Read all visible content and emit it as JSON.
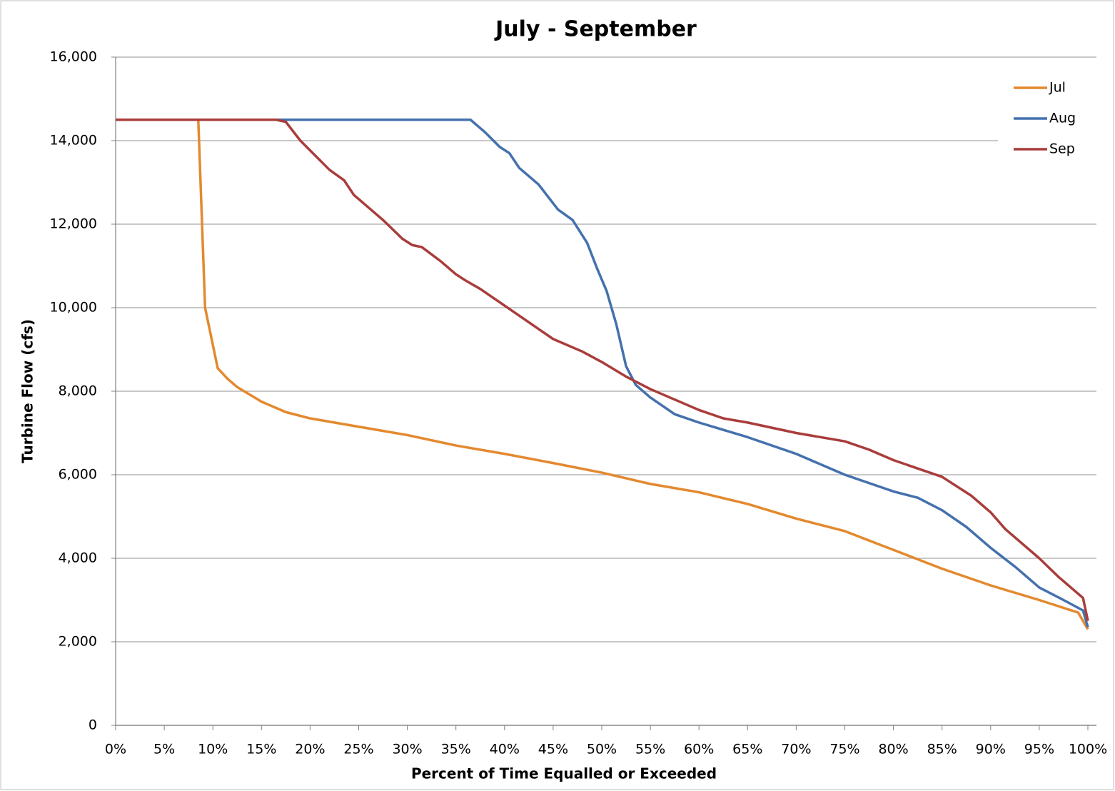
{
  "chart_data": {
    "type": "line",
    "title": "July - September",
    "xlabel": "Percent of Time Equalled or Exceeded",
    "ylabel": "Turbine Flow (cfs)",
    "xlim": [
      0,
      100
    ],
    "ylim": [
      0,
      16000
    ],
    "xticks": [
      {
        "value": 0,
        "label": "0%"
      },
      {
        "value": 5,
        "label": "5%"
      },
      {
        "value": 10,
        "label": "10%"
      },
      {
        "value": 15,
        "label": "15%"
      },
      {
        "value": 20,
        "label": "20%"
      },
      {
        "value": 25,
        "label": "25%"
      },
      {
        "value": 30,
        "label": "30%"
      },
      {
        "value": 35,
        "label": "35%"
      },
      {
        "value": 40,
        "label": "40%"
      },
      {
        "value": 45,
        "label": "45%"
      },
      {
        "value": 50,
        "label": "50%"
      },
      {
        "value": 55,
        "label": "55%"
      },
      {
        "value": 60,
        "label": "60%"
      },
      {
        "value": 65,
        "label": "65%"
      },
      {
        "value": 70,
        "label": "70%"
      },
      {
        "value": 75,
        "label": "75%"
      },
      {
        "value": 80,
        "label": "80%"
      },
      {
        "value": 85,
        "label": "85%"
      },
      {
        "value": 90,
        "label": "90%"
      },
      {
        "value": 95,
        "label": "95%"
      },
      {
        "value": 100,
        "label": "100%"
      }
    ],
    "yticks": [
      0,
      {
        "value": 2000,
        "label": "2,000"
      },
      {
        "value": 4000,
        "label": "4,000"
      },
      {
        "value": 6000,
        "label": "6,000"
      },
      {
        "value": 8000,
        "label": "8,000"
      },
      {
        "value": 10000,
        "label": "10,000"
      },
      {
        "value": 12000,
        "label": "12,000"
      },
      {
        "value": 14000,
        "label": "14,000"
      },
      {
        "value": 16000,
        "label": "16,000"
      }
    ],
    "grid": true,
    "legend": "upper right",
    "series": [
      {
        "name": "Jul",
        "color": "#e3892f",
        "x": [
          0,
          8.5,
          9.2,
          10.5,
          11.5,
          12.5,
          15,
          17.5,
          20,
          25,
          30,
          35,
          40,
          45,
          50,
          55,
          60,
          65,
          70,
          75,
          80,
          85,
          90,
          95,
          99,
          100
        ],
        "values": [
          14500,
          14500,
          10000,
          8550,
          8300,
          8100,
          7750,
          7500,
          7350,
          7150,
          6950,
          6700,
          6500,
          6280,
          6050,
          5780,
          5580,
          5300,
          4950,
          4650,
          4200,
          3750,
          3350,
          3000,
          2700,
          2300
        ]
      },
      {
        "name": "Aug",
        "color": "#4471ad",
        "x": [
          0,
          36.5,
          38,
          39.5,
          40.5,
          41.5,
          43.5,
          45.5,
          47,
          48.5,
          49.5,
          50.5,
          51.5,
          52.5,
          53.5,
          55,
          57.5,
          60,
          65,
          70,
          75,
          80,
          82.5,
          85,
          87.5,
          90,
          92.5,
          95,
          97.5,
          99.5,
          100
        ],
        "values": [
          14500,
          14500,
          14200,
          13850,
          13700,
          13350,
          12950,
          12350,
          12100,
          11550,
          10950,
          10400,
          9600,
          8600,
          8150,
          7850,
          7450,
          7250,
          6900,
          6500,
          6000,
          5600,
          5450,
          5150,
          4750,
          4250,
          3800,
          3300,
          3000,
          2750,
          2350
        ]
      },
      {
        "name": "Sep",
        "color": "#a93d3b",
        "x": [
          0,
          16.5,
          17.5,
          19,
          20.5,
          22,
          23.5,
          24.5,
          27.5,
          29.5,
          30.5,
          31.5,
          33.5,
          35,
          36,
          37.5,
          40,
          42.5,
          45,
          48,
          50,
          52.5,
          55,
          57.5,
          60,
          62.5,
          65,
          70,
          75,
          77.5,
          80,
          85,
          88,
          90,
          91.5,
          95,
          97,
          99.5,
          100
        ],
        "values": [
          14500,
          14500,
          14450,
          14000,
          13650,
          13300,
          13050,
          12700,
          12100,
          11650,
          11500,
          11450,
          11100,
          10800,
          10650,
          10450,
          10050,
          9650,
          9250,
          8950,
          8700,
          8350,
          8050,
          7800,
          7550,
          7350,
          7250,
          7000,
          6800,
          6600,
          6350,
          5950,
          5500,
          5100,
          4700,
          4000,
          3550,
          3050,
          2500
        ]
      }
    ]
  }
}
